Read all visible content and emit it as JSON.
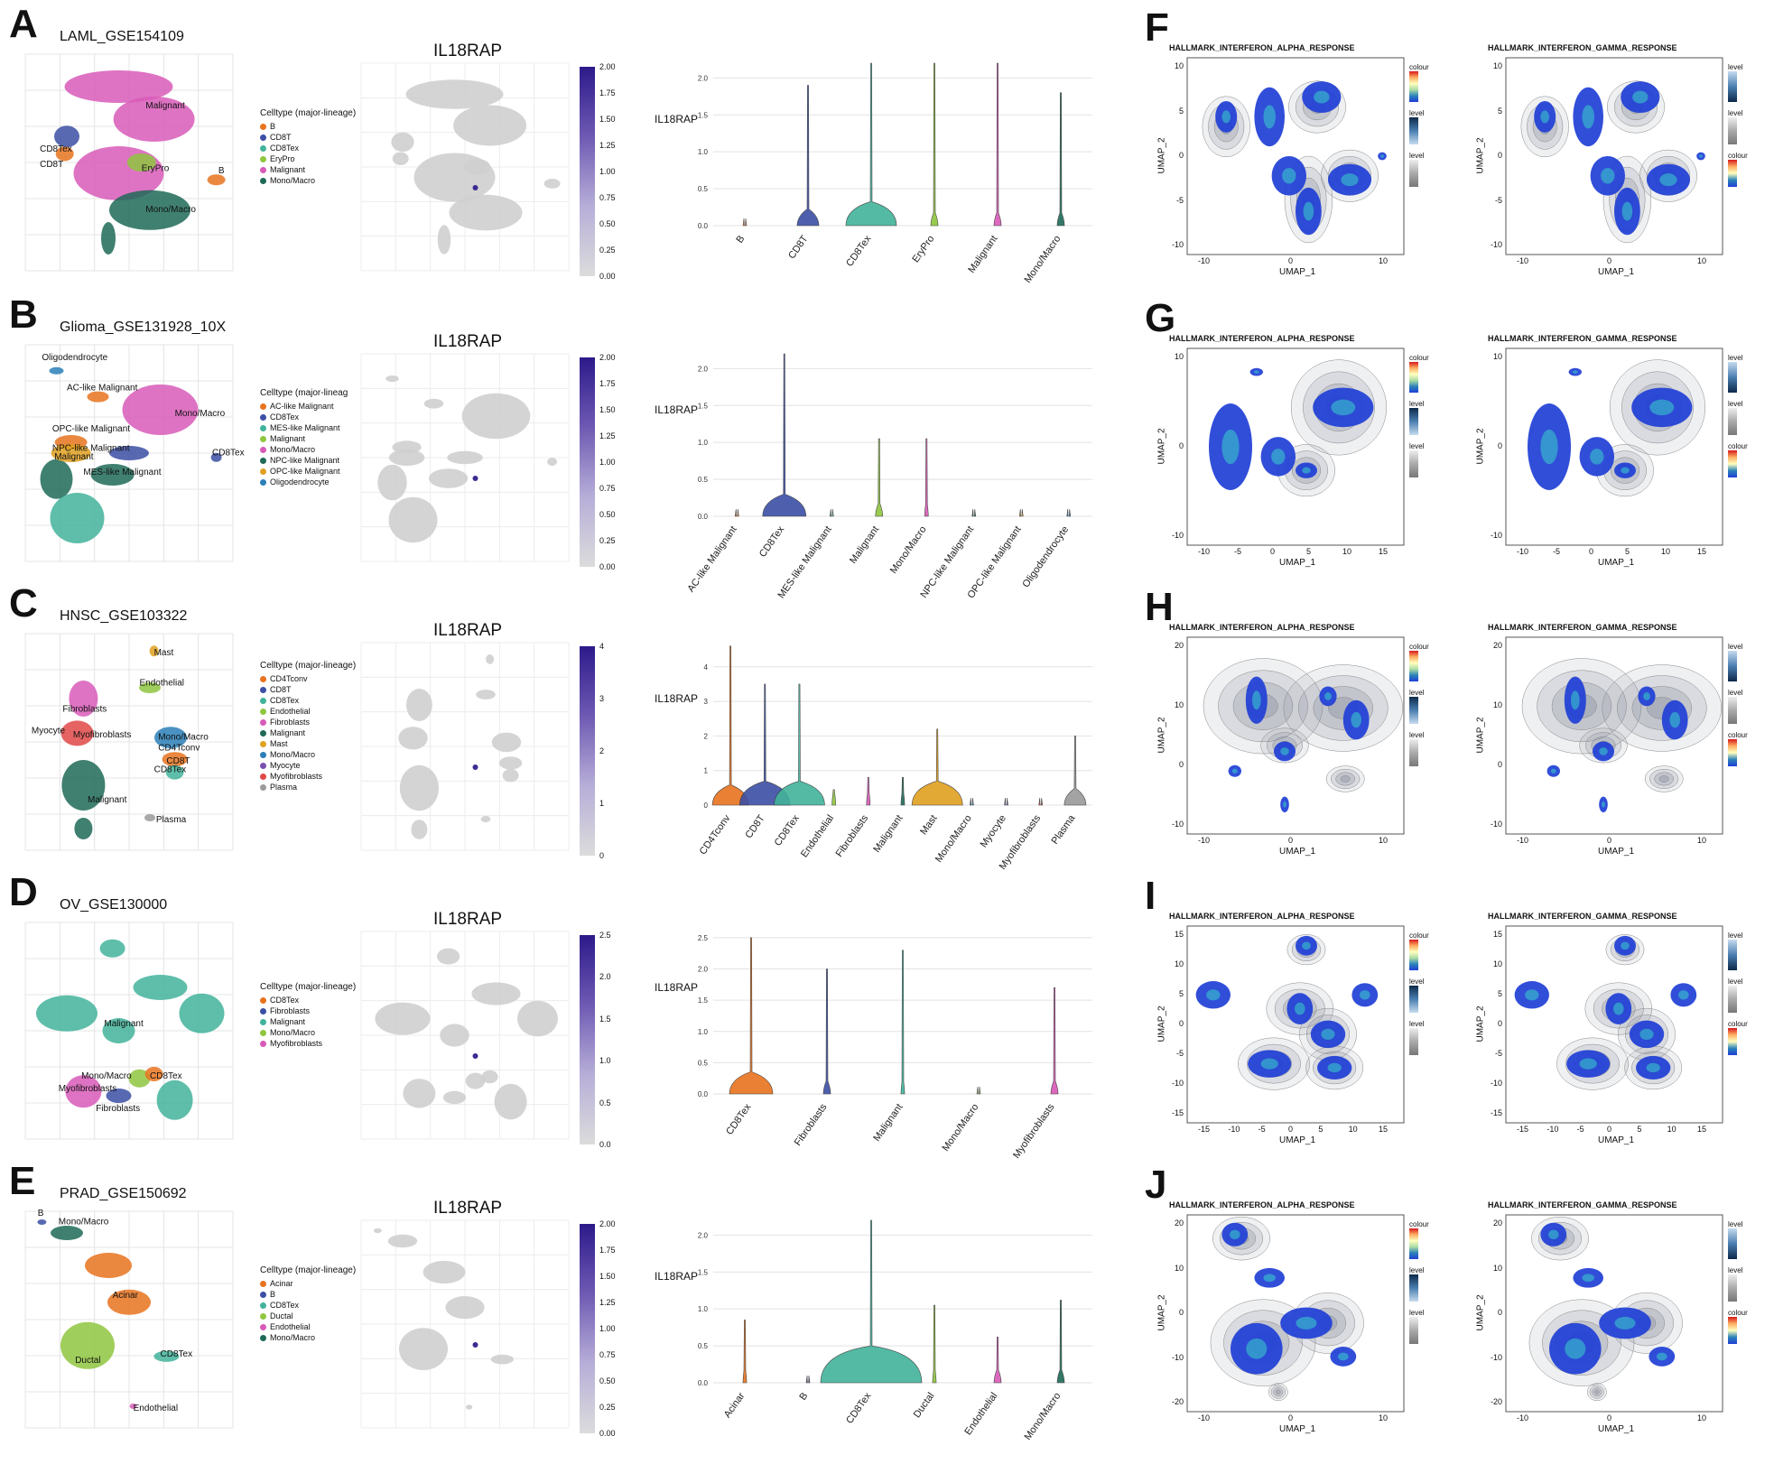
{
  "left_rows": [
    {
      "letter": "A",
      "dataset": "LAML_GSE154109",
      "gene": "IL18RAP",
      "legend_title": "Celltype (major-lineage)",
      "celltypes": [
        "B",
        "CD8T",
        "CD8Tex",
        "EryPro",
        "Malignant",
        "Mono/Macro"
      ],
      "colors": [
        "#e8731f",
        "#3b4fa5",
        "#42b39b",
        "#8fc63f",
        "#d85ab8",
        "#1e6a57"
      ],
      "umap_labels": [
        "Malignant",
        "CD8Tex",
        "CD8T",
        "EryPro",
        "B",
        "Mono/Macro"
      ],
      "cbar_ticks": [
        "2.00",
        "1.75",
        "1.50",
        "1.25",
        "1.00",
        "0.75",
        "0.50",
        "0.25",
        "0.00"
      ],
      "violin_ylabel": "IL18RAP",
      "violin_yticks": [
        "2.0",
        "1.5",
        "1.0",
        "0.5",
        "0.0"
      ],
      "violin_ymax": 2.2,
      "violin_tails": [
        0.0,
        1.9,
        2.2,
        2.2,
        2.2,
        1.8
      ],
      "violin_bulb": [
        0.0,
        0.3,
        0.7,
        0.1,
        0.1,
        0.1
      ]
    },
    {
      "letter": "B",
      "dataset": "Glioma_GSE131928_10X",
      "gene": "IL18RAP",
      "legend_title": "Celltype (major-lineag",
      "celltypes": [
        "AC-like Malignant",
        "CD8Tex",
        "MES-like Malignant",
        "Malignant",
        "Mono/Macro",
        "NPC-like Malignant",
        "OPC-like Malignant",
        "Oligodendrocyte"
      ],
      "colors": [
        "#e8731f",
        "#3b4fa5",
        "#42b39b",
        "#8fc63f",
        "#d85ab8",
        "#1e6a57",
        "#e0a020",
        "#2a7fb8"
      ],
      "umap_labels": [
        "Oligodendrocyte",
        "AC-like Malignant",
        "Mono/Macro",
        "OPC-like Malignant",
        "CD8Tex",
        "NPC-like Malignant",
        "Malignant",
        "MES-like Malignant"
      ],
      "cbar_ticks": [
        "2.00",
        "1.75",
        "1.50",
        "1.25",
        "1.00",
        "0.75",
        "0.50",
        "0.25",
        "0.00"
      ],
      "violin_ylabel": "IL18RAP",
      "violin_yticks": [
        "2.0",
        "1.5",
        "1.0",
        "0.5",
        "0.0"
      ],
      "violin_ymax": 2.2,
      "violin_tails": [
        0.0,
        2.2,
        0.0,
        1.05,
        1.05,
        0.0,
        0.0,
        0.0
      ],
      "violin_bulb": [
        0.0,
        0.6,
        0.0,
        0.1,
        0.05,
        0.0,
        0.0,
        0.0
      ]
    },
    {
      "letter": "C",
      "dataset": "HNSC_GSE103322",
      "gene": "IL18RAP",
      "legend_title": "Celltype (major-lineage)",
      "celltypes": [
        "CD4Tconv",
        "CD8T",
        "CD8Tex",
        "Endothelial",
        "Fibroblasts",
        "Malignant",
        "Mast",
        "Mono/Macro",
        "Myocyte",
        "Myofibroblasts",
        "Plasma"
      ],
      "colors": [
        "#e8731f",
        "#3b4fa5",
        "#42b39b",
        "#8fc63f",
        "#d85ab8",
        "#1e6a57",
        "#e0a020",
        "#2a7fb8",
        "#7a4fb0",
        "#e04848",
        "#9a9a9a"
      ],
      "umap_labels": [
        "Mast",
        "Endothelial",
        "Fibroblasts",
        "Myocyte",
        "Myofibroblasts",
        "Mono/Macro",
        "CD4Tconv",
        "CD8T",
        "CD8Tex",
        "Malignant",
        "Plasma"
      ],
      "cbar_ticks": [
        "4",
        "3",
        "2",
        "1",
        "0"
      ],
      "violin_ylabel": "IL18RAP",
      "violin_yticks": [
        "4",
        "3",
        "2",
        "1",
        "0"
      ],
      "violin_ymax": 4.7,
      "violin_tails": [
        4.6,
        3.5,
        3.5,
        0.45,
        0.8,
        0.8,
        2.2,
        0.0,
        0.0,
        0.0,
        2.0
      ],
      "violin_bulb": [
        0.5,
        0.7,
        0.7,
        0.05,
        0.05,
        0.05,
        0.7,
        0.0,
        0.0,
        0.0,
        0.3
      ]
    },
    {
      "letter": "D",
      "dataset": "OV_GSE130000",
      "gene": "IL18RAP",
      "legend_title": "Celltype (major-lineage)",
      "celltypes": [
        "CD8Tex",
        "Fibroblasts",
        "Malignant",
        "Mono/Macro",
        "Myofibroblasts"
      ],
      "colors": [
        "#e8731f",
        "#3b4fa5",
        "#42b39b",
        "#8fc63f",
        "#d85ab8"
      ],
      "umap_labels": [
        "Malignant",
        "Mono/Macro",
        "CD8Tex",
        "Myofibroblasts",
        "Fibroblasts"
      ],
      "cbar_ticks": [
        "2.5",
        "2.0",
        "1.5",
        "1.0",
        "0.5",
        "0.0"
      ],
      "violin_ylabel": "IL18RAP",
      "violin_yticks": [
        "2.5",
        "2.0",
        "1.5",
        "1.0",
        "0.5",
        "0.0"
      ],
      "violin_ymax": 2.6,
      "violin_tails": [
        2.5,
        2.0,
        2.3,
        0.0,
        1.7
      ],
      "violin_bulb": [
        0.6,
        0.1,
        0.05,
        0.0,
        0.1
      ]
    },
    {
      "letter": "E",
      "dataset": "PRAD_GSE150692",
      "gene": "IL18RAP",
      "legend_title": "Celltype (major-lineage)",
      "celltypes": [
        "Acinar",
        "B",
        "CD8Tex",
        "Ductal",
        "Endothelial",
        "Mono/Macro"
      ],
      "colors": [
        "#e8731f",
        "#3b4fa5",
        "#42b39b",
        "#8fc63f",
        "#d85ab8",
        "#1e6a57"
      ],
      "umap_labels": [
        "B",
        "Mono/Macro",
        "Acinar",
        "Ductal",
        "CD8Tex",
        "Endothelial"
      ],
      "cbar_ticks": [
        "2.00",
        "1.75",
        "1.50",
        "1.25",
        "1.00",
        "0.75",
        "0.50",
        "0.25",
        "0.00"
      ],
      "violin_ylabel": "IL18RAP",
      "violin_yticks": [
        "2.0",
        "1.5",
        "1.0",
        "0.5",
        "0.0"
      ],
      "violin_ymax": 2.2,
      "violin_tails": [
        0.85,
        0.0,
        2.2,
        1.05,
        0.62,
        1.12
      ],
      "violin_bulb": [
        0.05,
        0.0,
        1.4,
        0.05,
        0.1,
        0.1
      ]
    }
  ],
  "right_rows": [
    {
      "letter": "F",
      "alpha_title": "HALLMARK_INTERFERON_ALPHA_RESPONSE",
      "gamma_title": "HALLMARK_INTERFERON_GAMMA_RESPONSE",
      "xlabel": "UMAP_1",
      "ylabel": "UMAP_2",
      "xticks": [
        "-10",
        "0",
        "10"
      ],
      "yticks": [
        "10",
        "5",
        "0",
        "-5",
        "-10"
      ]
    },
    {
      "letter": "G",
      "alpha_title": "HALLMARK_INTERFERON_ALPHA_RESPONSE",
      "gamma_title": "HALLMARK_INTERFERON_GAMMA_RESPONSE",
      "xlabel": "UMAP_1",
      "ylabel": "UMAP_2",
      "xticks": [
        "-10",
        "-5",
        "0",
        "5",
        "10",
        "15"
      ],
      "yticks": [
        "10",
        "0",
        "-10"
      ]
    },
    {
      "letter": "H",
      "alpha_title": "HALLMARK_INTERFERON_ALPHA_RESPONSE",
      "gamma_title": "HALLMARK_INTERFERON_GAMMA_RESPONSE",
      "xlabel": "UMAP_1",
      "ylabel": "UMAP_2",
      "xticks": [
        "-10",
        "0",
        "10"
      ],
      "yticks": [
        "20",
        "10",
        "0",
        "-10"
      ]
    },
    {
      "letter": "I",
      "alpha_title": "HALLMARK_INTERFERON_ALPHA_RESPONSE",
      "gamma_title": "HALLMARK_INTERFERON_GAMMA_RESPONSE",
      "xlabel": "UMAP_1",
      "ylabel": "UMAP_2",
      "xticks": [
        "-15",
        "-10",
        "-5",
        "0",
        "5",
        "10",
        "15"
      ],
      "yticks": [
        "15",
        "10",
        "5",
        "0",
        "-5",
        "-10",
        "-15"
      ]
    },
    {
      "letter": "J",
      "alpha_title": "HALLMARK_INTERFERON_ALPHA_RESPONSE",
      "gamma_title": "HALLMARK_INTERFERON_GAMMA_RESPONSE",
      "xlabel": "UMAP_1",
      "ylabel": "UMAP_2",
      "xticks": [
        "-10",
        "0",
        "10"
      ],
      "yticks": [
        "20",
        "10",
        "0",
        "-10",
        "-20"
      ]
    }
  ],
  "right_legends": {
    "colour": "colour",
    "level": "level"
  }
}
